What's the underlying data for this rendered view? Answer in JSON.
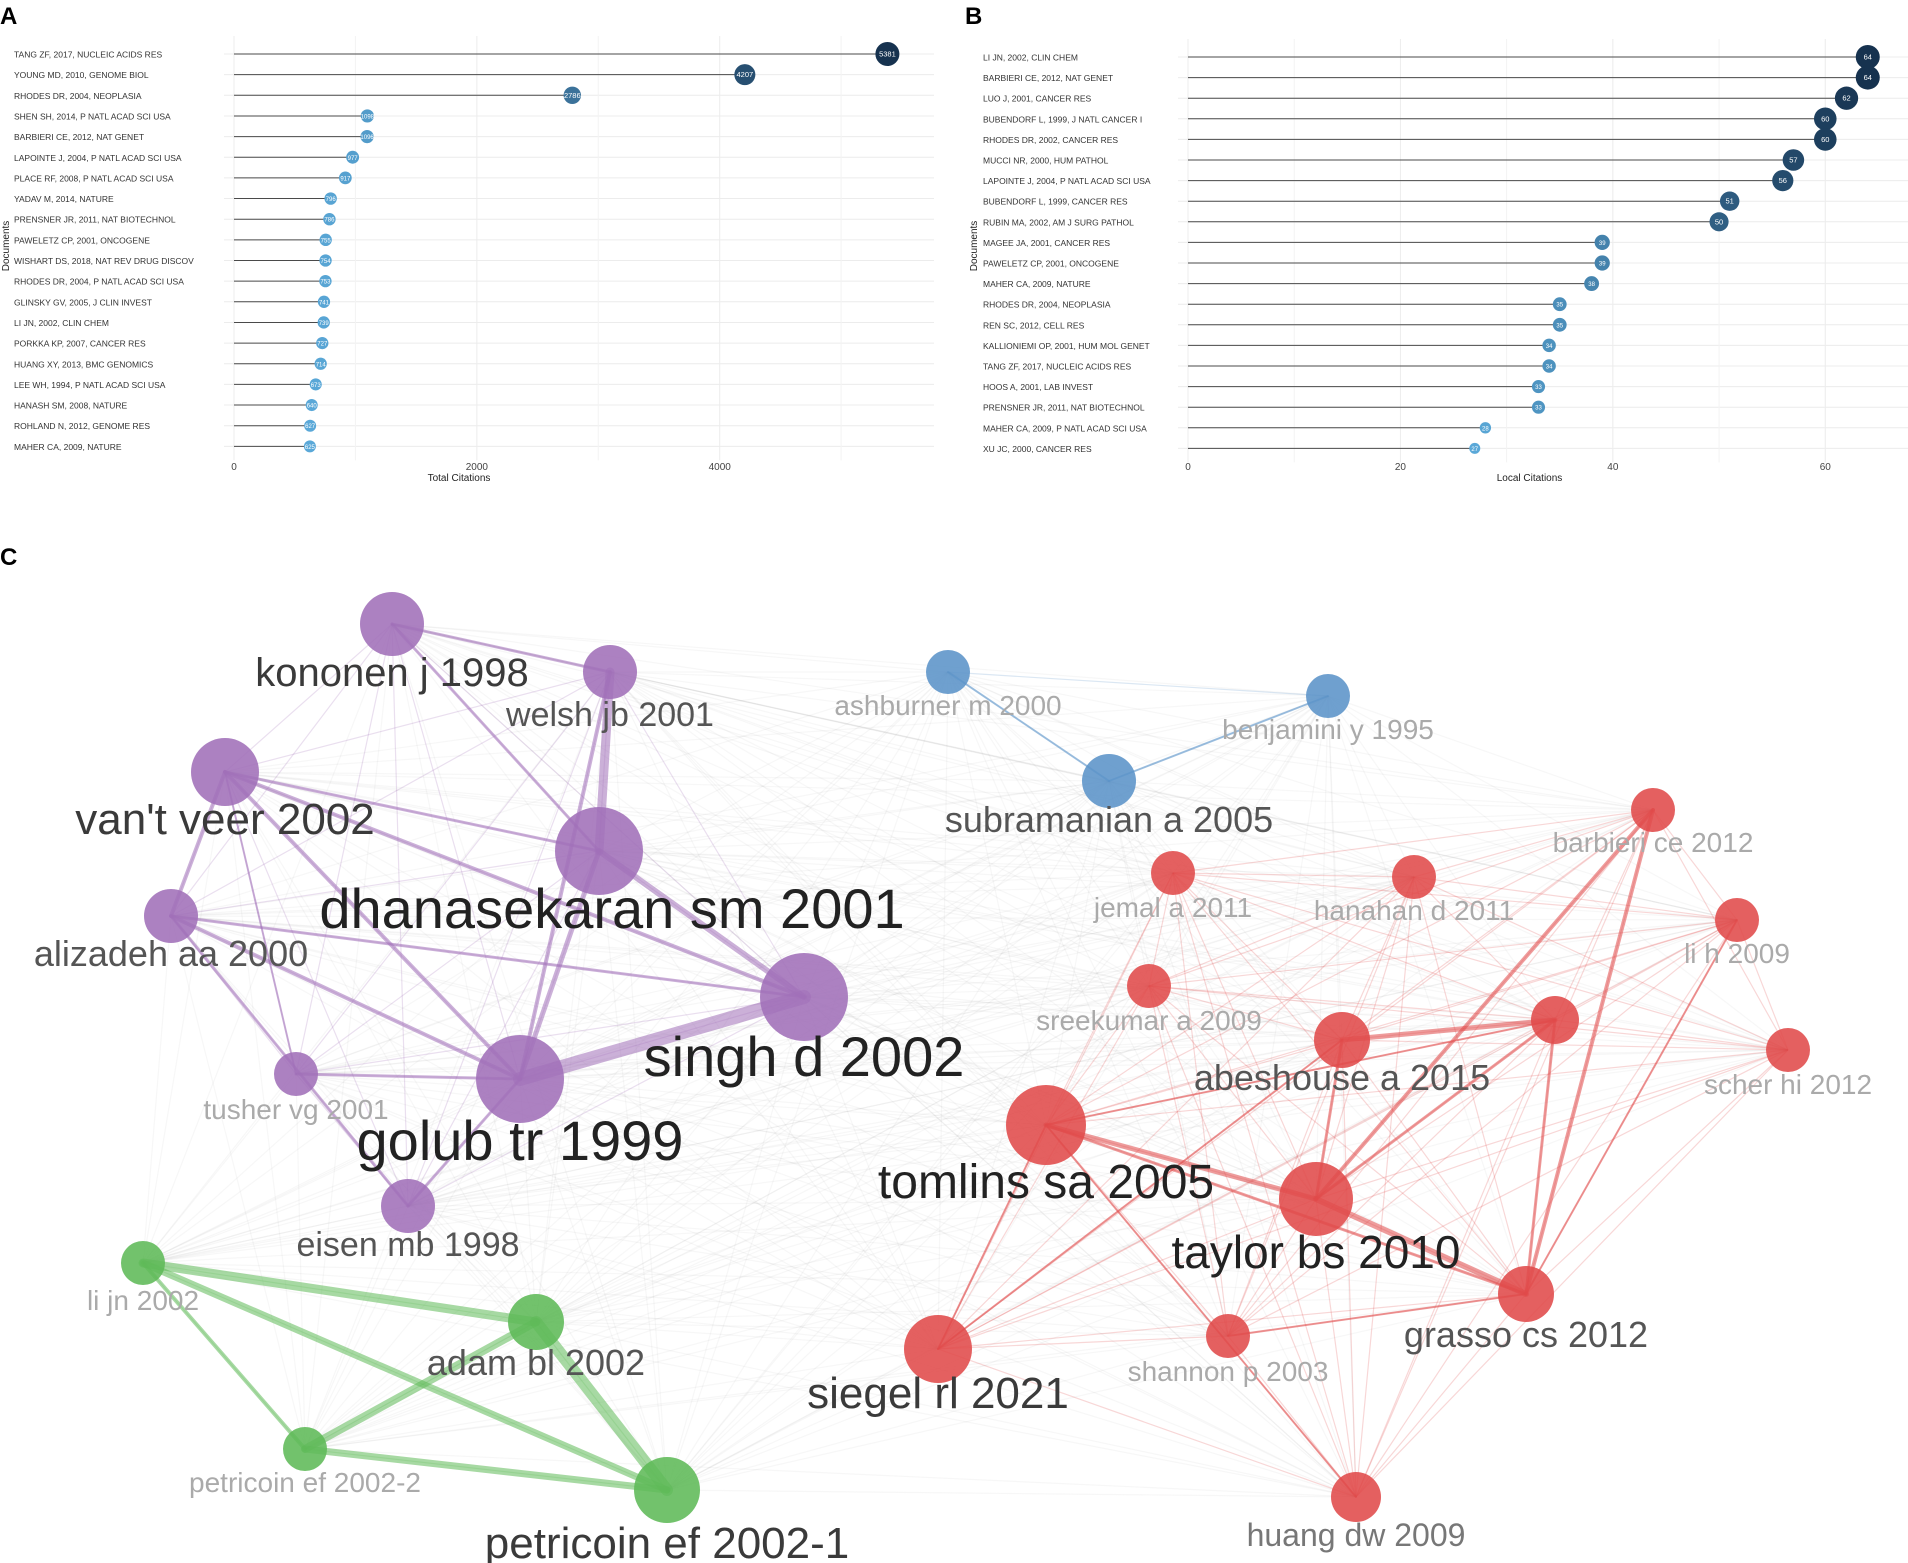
{
  "panels": {
    "a": "A",
    "b": "B",
    "c": "C"
  },
  "chart_data": [
    {
      "type": "lollipop",
      "panel": "A",
      "xlabel": "Total Citations",
      "ylabel": "Documents",
      "xlim": [
        0,
        5600
      ],
      "xticks": [
        0,
        2000,
        4000
      ],
      "color_scale": [
        "#5aa8d8",
        "#16324f"
      ],
      "categories": [
        "TANG ZF, 2017, NUCLEIC ACIDS RES",
        "YOUNG MD, 2010, GENOME BIOL",
        "RHODES DR, 2004, NEOPLASIA",
        "SHEN SH, 2014, P NATL ACAD SCI USA",
        "BARBIERI CE, 2012, NAT GENET",
        "LAPOINTE J, 2004, P NATL ACAD SCI USA",
        "PLACE RF, 2008, P NATL ACAD SCI USA",
        "YADAV M, 2014, NATURE",
        "PRENSNER JR, 2011, NAT BIOTECHNOL",
        "PAWELETZ CP, 2001, ONCOGENE",
        "WISHART DS, 2018, NAT REV DRUG DISCOV",
        "RHODES DR, 2004, P NATL ACAD SCI USA",
        "GLINSKY GV, 2005, J CLIN INVEST",
        "LI JN, 2002, CLIN CHEM",
        "PORKKA KP, 2007, CANCER RES",
        "HUANG XY, 2013, BMC GENOMICS",
        "LEE WH, 1994, P NATL ACAD SCI USA",
        "HANASH SM, 2008, NATURE",
        "ROHLAND N, 2012, GENOME RES",
        "MAHER CA, 2009, NATURE"
      ],
      "values": [
        5381,
        4207,
        2786,
        1098,
        1096,
        977,
        917,
        796,
        786,
        755,
        754,
        753,
        741,
        739,
        727,
        714,
        673,
        640,
        627,
        625
      ],
      "labels": [
        "5381",
        "4207",
        "2786",
        "1098",
        "1096",
        "977",
        "917",
        "796",
        "786",
        "755",
        "754",
        "753",
        "741",
        "739",
        "727",
        "714",
        "673",
        "640",
        "627",
        "625"
      ]
    },
    {
      "type": "lollipop",
      "panel": "B",
      "xlabel": "Local Citations",
      "ylabel": "Documents",
      "xlim": [
        0,
        66
      ],
      "xticks": [
        0,
        20,
        40,
        60
      ],
      "color_scale": [
        "#5aa8d8",
        "#16324f"
      ],
      "categories": [
        "LI JN, 2002, CLIN CHEM",
        "BARBIERI CE, 2012, NAT GENET",
        "LUO J, 2001, CANCER RES",
        "BUBENDORF L, 1999, J NATL CANCER I",
        "RHODES DR, 2002, CANCER RES",
        "MUCCI NR, 2000, HUM PATHOL",
        "LAPOINTE J, 2004, P NATL ACAD SCI USA",
        "BUBENDORF L, 1999, CANCER RES",
        "RUBIN MA, 2002, AM J SURG PATHOL",
        "MAGEE JA, 2001, CANCER RES",
        "PAWELETZ CP, 2001, ONCOGENE",
        "MAHER CA, 2009, NATURE",
        "RHODES DR, 2004, NEOPLASIA",
        "REN SC, 2012, CELL RES",
        "KALLIONIEMI OP, 2001, HUM MOL GENET",
        "TANG ZF, 2017, NUCLEIC ACIDS RES",
        "HOOS A, 2001, LAB INVEST",
        "PRENSNER JR, 2011, NAT BIOTECHNOL",
        "MAHER CA, 2009, P NATL ACAD SCI USA",
        "XU JC, 2000, CANCER RES"
      ],
      "values": [
        64,
        64,
        62,
        60,
        60,
        57,
        56,
        51,
        50,
        39,
        39,
        38,
        35,
        35,
        34,
        34,
        33,
        33,
        28,
        27
      ],
      "labels": [
        "64",
        "64",
        "62",
        "60",
        "60",
        "57",
        "56",
        "51",
        "50",
        "39",
        "39",
        "38",
        "35",
        "35",
        "34",
        "34",
        "33",
        "33",
        "28",
        "27"
      ]
    },
    {
      "type": "network",
      "panel": "C",
      "cluster_colors": {
        "purple": "#a16fb8",
        "blue": "#5b93c8",
        "red": "#e04a4a",
        "green": "#5fba58"
      },
      "nodes": [
        {
          "id": "kononen",
          "label": "kononen j 1998",
          "cluster": "purple",
          "weight": 0.55
        },
        {
          "id": "welsh",
          "label": "welsh jb 2001",
          "cluster": "purple",
          "weight": 0.45
        },
        {
          "id": "vantveer",
          "label": "van't veer 2002",
          "cluster": "purple",
          "weight": 0.6
        },
        {
          "id": "dhanasekaran",
          "label": "dhanasekaran sm 2001",
          "cluster": "purple",
          "weight": 0.8
        },
        {
          "id": "alizadeh",
          "label": "alizadeh aa 2000",
          "cluster": "purple",
          "weight": 0.5
        },
        {
          "id": "singh",
          "label": "singh d 2002",
          "cluster": "purple",
          "weight": 0.85
        },
        {
          "id": "tusher",
          "label": "tusher vg 2001",
          "cluster": "purple",
          "weight": 0.4
        },
        {
          "id": "golub",
          "label": "golub tr 1999",
          "cluster": "purple",
          "weight": 0.85
        },
        {
          "id": "eisen",
          "label": "eisen mb 1998",
          "cluster": "purple",
          "weight": 0.5
        },
        {
          "id": "ashburner",
          "label": "ashburner m 2000",
          "cluster": "blue",
          "weight": 0.4
        },
        {
          "id": "benjamini",
          "label": "benjamini y 1995",
          "cluster": "blue",
          "weight": 0.4
        },
        {
          "id": "subramanian",
          "label": "subramanian a 2005",
          "cluster": "blue",
          "weight": 0.5
        },
        {
          "id": "barbieri",
          "label": "barbieri ce 2012",
          "cluster": "red",
          "weight": 0.4
        },
        {
          "id": "jemal",
          "label": "jemal a 2011",
          "cluster": "red",
          "weight": 0.4
        },
        {
          "id": "hanahan",
          "label": "hanahan d 2011",
          "cluster": "red",
          "weight": 0.4
        },
        {
          "id": "lih",
          "label": "li h 2009",
          "cluster": "red",
          "weight": 0.4
        },
        {
          "id": "sreekumar",
          "label": "sreekumar a 2009",
          "cluster": "red",
          "weight": 0.4
        },
        {
          "id": "abeshouse",
          "label": "abeshouse a 2015",
          "cluster": "red",
          "weight": 0.5
        },
        {
          "id": "pn",
          "label": "",
          "cluster": "red",
          "weight": 0.45
        },
        {
          "id": "scher",
          "label": "scher hi 2012",
          "cluster": "red",
          "weight": 0.4
        },
        {
          "id": "tomlins",
          "label": "tomlins sa 2005",
          "cluster": "red",
          "weight": 0.75
        },
        {
          "id": "taylor",
          "label": "taylor bs 2010",
          "cluster": "red",
          "weight": 0.7
        },
        {
          "id": "grasso",
          "label": "grasso cs 2012",
          "cluster": "red",
          "weight": 0.55
        },
        {
          "id": "siegel",
          "label": "siegel rl 2021",
          "cluster": "red",
          "weight": 0.65
        },
        {
          "id": "shannon",
          "label": "shannon p 2003",
          "cluster": "red",
          "weight": 0.4
        },
        {
          "id": "huang",
          "label": "huang dw 2009",
          "cluster": "red",
          "weight": 0.45
        },
        {
          "id": "lijn",
          "label": "li jn 2002",
          "cluster": "green",
          "weight": 0.4
        },
        {
          "id": "adam",
          "label": "adam bl 2002",
          "cluster": "green",
          "weight": 0.5
        },
        {
          "id": "petricoin2",
          "label": "petricoin ef 2002-2",
          "cluster": "green",
          "weight": 0.4
        },
        {
          "id": "petricoin1",
          "label": "petricoin ef 2002-1",
          "cluster": "green",
          "weight": 0.6
        }
      ]
    }
  ]
}
